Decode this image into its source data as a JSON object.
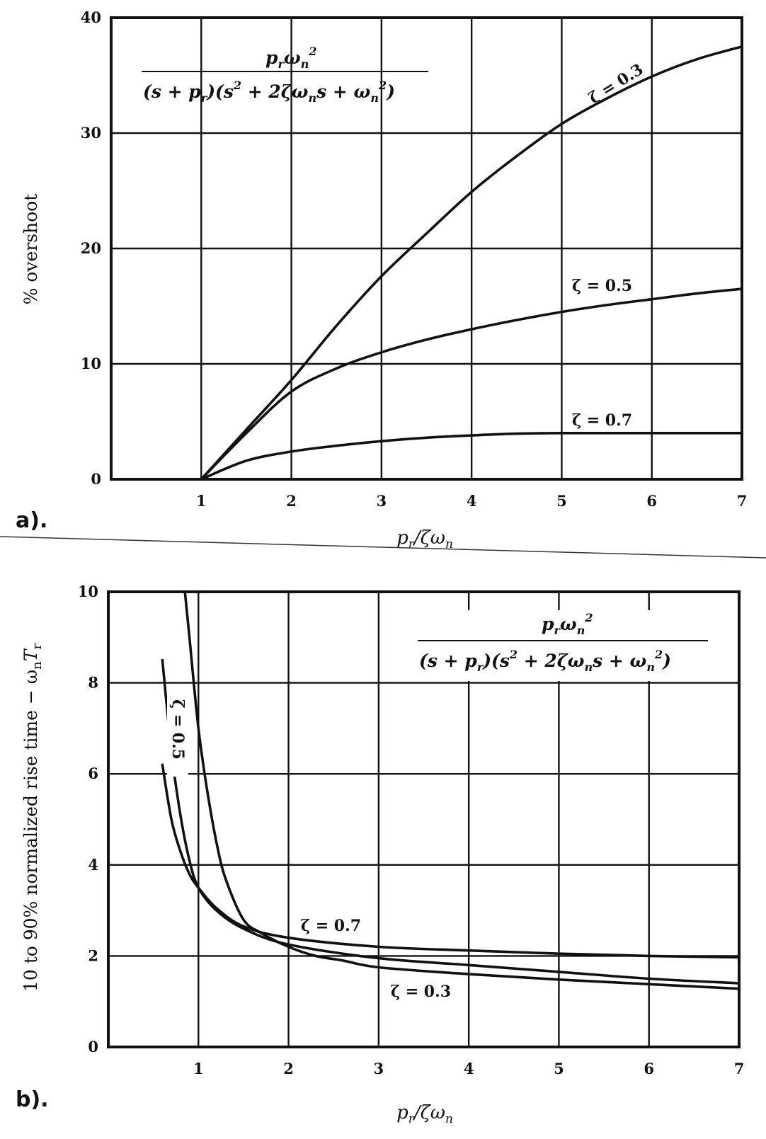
{
  "chart_data": [
    {
      "type": "line",
      "panel_label": "a).",
      "formula": "p_r ω_n² / ((s + p_r)(s² + 2ζω_n s + ω_n²))",
      "formula_numerator": "p_r ω_n²",
      "formula_denominator": "(s + p_r)(s² + 2ζω_n s + ω_n²)",
      "xlabel": "p_r/ζω_n",
      "ylabel": "% overshoot",
      "xlim": [
        0,
        7
      ],
      "ylim": [
        0,
        40
      ],
      "x_ticks": [
        "1",
        "2",
        "3",
        "4",
        "5",
        "6",
        "7"
      ],
      "y_ticks": [
        "0",
        "10",
        "20",
        "30",
        "40"
      ],
      "grid": true,
      "series": [
        {
          "name": "ζ = 0.3",
          "x": [
            1,
            1.5,
            2,
            2.5,
            3,
            3.5,
            4,
            4.5,
            5,
            5.5,
            6,
            6.5,
            7
          ],
          "y": [
            0,
            4.3,
            8.6,
            13.3,
            17.6,
            21.3,
            24.9,
            28,
            30.8,
            33,
            34.9,
            36.4,
            37.5
          ]
        },
        {
          "name": "ζ = 0.5",
          "x": [
            1,
            1.5,
            2,
            2.5,
            3,
            3.5,
            4,
            4.5,
            5,
            5.5,
            6,
            6.5,
            7
          ],
          "y": [
            0,
            4,
            7.6,
            9.6,
            11,
            12.1,
            13,
            13.8,
            14.5,
            15.1,
            15.6,
            16.1,
            16.5
          ]
        },
        {
          "name": "ζ = 0.7",
          "x": [
            1,
            1.5,
            2,
            2.5,
            3,
            3.5,
            4,
            4.5,
            5,
            5.5,
            6,
            6.5,
            7
          ],
          "y": [
            0,
            1.6,
            2.4,
            2.9,
            3.3,
            3.6,
            3.8,
            3.95,
            4,
            4,
            4,
            4,
            4
          ]
        }
      ]
    },
    {
      "type": "line",
      "panel_label": "b).",
      "formula": "p_r ω_n² / ((s + p_r)(s² + 2ζω_n s + ω_n²))",
      "formula_numerator": "p_r ω_n²",
      "formula_denominator": "(s + p_r)(s² + 2ζω_n s + ω_n²)",
      "xlabel": "p_r/ζω_n",
      "ylabel": "10 to 90% normalized rise time − ω_n T_r",
      "xlim": [
        0,
        7
      ],
      "ylim": [
        0,
        10
      ],
      "x_ticks": [
        "1",
        "2",
        "3",
        "4",
        "5",
        "6",
        "7"
      ],
      "y_ticks": [
        "0",
        "2",
        "4",
        "6",
        "8",
        "10"
      ],
      "grid": true,
      "series": [
        {
          "name": "ζ = 0.3",
          "x": [
            0.85,
            0.9,
            1,
            1.1,
            1.2,
            1.3,
            1.5,
            1.7,
            2,
            2.3,
            2.6,
            3,
            4,
            5,
            6,
            7
          ],
          "y": [
            10,
            9,
            7,
            5.6,
            4.5,
            3.7,
            2.8,
            2.5,
            2.2,
            2,
            1.9,
            1.75,
            1.6,
            1.48,
            1.38,
            1.28
          ]
        },
        {
          "name": "ζ = 0.5",
          "x": [
            0.6,
            0.7,
            0.8,
            0.9,
            1,
            1.2,
            1.5,
            2,
            3,
            4,
            5,
            6,
            7
          ],
          "y": [
            8.5,
            6.5,
            5.1,
            4.1,
            3.5,
            3,
            2.6,
            2.25,
            1.95,
            1.8,
            1.65,
            1.5,
            1.4
          ]
        },
        {
          "name": "ζ = 0.7",
          "x": [
            0.6,
            0.7,
            0.8,
            0.9,
            1,
            1.2,
            1.5,
            2,
            3,
            4,
            5,
            6,
            7
          ],
          "y": [
            6.2,
            5,
            4.3,
            3.8,
            3.5,
            3.05,
            2.65,
            2.4,
            2.2,
            2.12,
            2.05,
            2,
            1.97
          ]
        }
      ]
    }
  ],
  "panel_a": {
    "label": "a).",
    "ylabel": "% overshoot",
    "xlabel": "p_r/ζω_n",
    "curve_labels": [
      "ζ = 0.3",
      "ζ = 0.5",
      "ζ = 0.7"
    ]
  },
  "panel_b": {
    "label": "b).",
    "ylabel": "10 to 90% normalized rise time − ω_n T_r",
    "xlabel": "p_r/ζω_n",
    "curve_labels": [
      "ζ = 0.3",
      "ζ = 0.5",
      "ζ = 0.7"
    ]
  }
}
